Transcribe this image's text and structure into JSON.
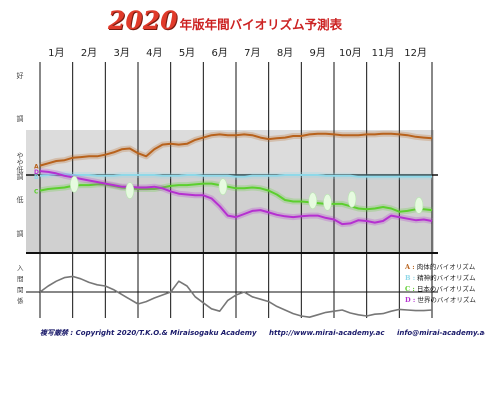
{
  "title": {
    "year": "2020",
    "text": "年版年間バイオリズム予測表"
  },
  "footer": {
    "copyright": "複写厳禁 : Copyright 2020/T.K.O.& Miraisogaku Academy",
    "url": "http://www.mirai-academy.ac",
    "email": "info@mirai-academy.ac"
  },
  "legend": [
    {
      "key": "A",
      "label": "肉体的バイオリズム",
      "color": "#b8621c"
    },
    {
      "key": "B",
      "label": "精神的バイオリズム",
      "color": "#8fd8e8"
    },
    {
      "key": "C",
      "label": "日本のバイオリズム",
      "color": "#5ccf2e"
    },
    {
      "key": "D",
      "label": "世界のバイオリズム",
      "color": "#b530d0"
    }
  ],
  "axis_labels": [
    "好",
    "調",
    "やや低調",
    "低",
    "調"
  ],
  "lower_labels": [
    "入",
    "間",
    "関",
    "係"
  ],
  "chart_data": {
    "type": "line",
    "categories": [
      "1月",
      "2月",
      "3月",
      "4月",
      "5月",
      "6月",
      "7月",
      "8月",
      "9月",
      "10月",
      "11月",
      "12月"
    ],
    "x": [
      0,
      0.25,
      0.5,
      0.75,
      1,
      1.25,
      1.5,
      1.75,
      2,
      2.25,
      2.5,
      2.75,
      3,
      3.25,
      3.5,
      3.75,
      4,
      4.25,
      4.5,
      4.75,
      5,
      5.25,
      5.5,
      5.75,
      6,
      6.25,
      6.5,
      6.75,
      7,
      7.25,
      7.5,
      7.75,
      8,
      8.25,
      8.5,
      8.75,
      9,
      9.25,
      9.5,
      9.75,
      10,
      10.25,
      10.5,
      10.75,
      11,
      11.25,
      11.5,
      11.75,
      12
    ],
    "ylim": [
      -100,
      100
    ],
    "series": [
      {
        "key": "A",
        "color": "#b8621c",
        "values": [
          12,
          15,
          18,
          19,
          22,
          23,
          24,
          24,
          26,
          29,
          33,
          34,
          28,
          24,
          33,
          39,
          40,
          39,
          40,
          45,
          48,
          51,
          52,
          51,
          51,
          52,
          51,
          48,
          46,
          47,
          48,
          50,
          50,
          52,
          53,
          53,
          52,
          51,
          51,
          51,
          52,
          52,
          53,
          53,
          52,
          51,
          49,
          48,
          47
        ]
      },
      {
        "key": "B",
        "color": "#8fd8e8",
        "values": [
          -1,
          0,
          1,
          1,
          0,
          0,
          0,
          -1,
          -1,
          -1,
          0,
          0,
          0,
          0,
          0,
          -1,
          -1,
          -1,
          0,
          0,
          -1,
          -1,
          -1,
          -1,
          -2,
          -2,
          -1,
          -1,
          -1,
          -1,
          0,
          0,
          0,
          0,
          0,
          -1,
          -1,
          -1,
          -1,
          -2,
          -2,
          -2,
          -2,
          -2,
          -2,
          -2,
          -2,
          -2,
          -2
        ]
      },
      {
        "key": "C",
        "color": "#5ccf2e",
        "values": [
          -20,
          -18,
          -17,
          -16,
          -14,
          -13,
          -13,
          -12,
          -12,
          -14,
          -16,
          -17,
          -18,
          -18,
          -18,
          -16,
          -14,
          -13,
          -13,
          -12,
          -11,
          -11,
          -13,
          -15,
          -17,
          -17,
          -16,
          -17,
          -20,
          -25,
          -32,
          -34,
          -34,
          -35,
          -36,
          -37,
          -37,
          -37,
          -40,
          -43,
          -44,
          -43,
          -41,
          -43,
          -47,
          -46,
          -44,
          -44,
          -45
        ]
      },
      {
        "key": "D",
        "color": "#b530d0",
        "values": [
          5,
          4,
          2,
          -1,
          -3,
          -5,
          -7,
          -9,
          -11,
          -13,
          -15,
          -15,
          -16,
          -16,
          -15,
          -17,
          -21,
          -24,
          -25,
          -26,
          -26,
          -30,
          -40,
          -52,
          -54,
          -50,
          -46,
          -45,
          -48,
          -51,
          -53,
          -54,
          -53,
          -52,
          -52,
          -55,
          -57,
          -63,
          -62,
          -58,
          -59,
          -61,
          -59,
          -52,
          -54,
          -56,
          -58,
          -57,
          -59
        ]
      },
      {
        "key": "interpersonal",
        "color": "#777777",
        "values": [
          0,
          10,
          18,
          24,
          26,
          22,
          16,
          12,
          10,
          4,
          -4,
          -12,
          -20,
          -16,
          -10,
          -5,
          0,
          18,
          10,
          -8,
          -18,
          -28,
          -32,
          -14,
          -5,
          0,
          -8,
          -12,
          -16,
          -24,
          -30,
          -36,
          -40,
          -42,
          -38,
          -34,
          -32,
          -30,
          -35,
          -38,
          -40,
          -37,
          -36,
          -32,
          -29,
          -30,
          -31,
          -31,
          -30
        ]
      }
    ],
    "markers": [
      {
        "x": 1.05,
        "y": -12
      },
      {
        "x": 2.75,
        "y": -20
      },
      {
        "x": 5.6,
        "y": -15
      },
      {
        "x": 8.35,
        "y": -33
      },
      {
        "x": 8.8,
        "y": -35
      },
      {
        "x": 9.55,
        "y": -31
      },
      {
        "x": 11.6,
        "y": -39
      }
    ]
  }
}
